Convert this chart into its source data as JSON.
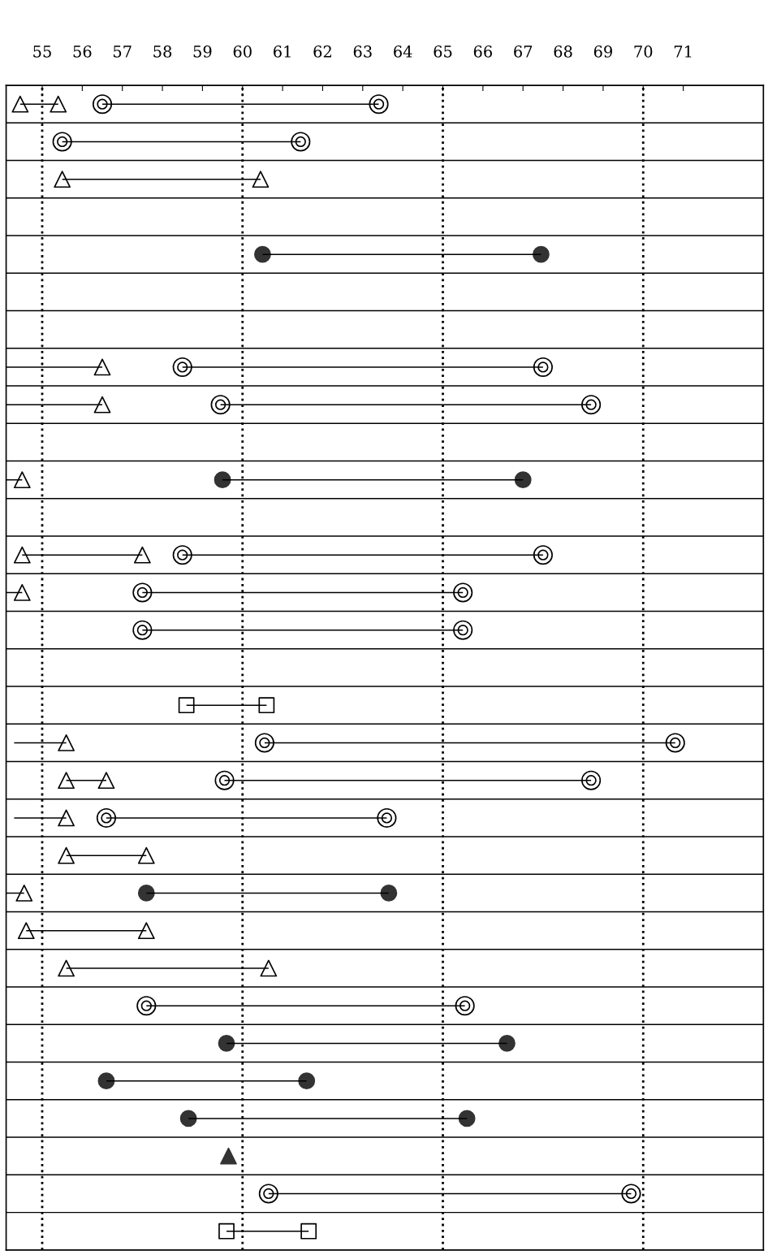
{
  "chart_data": {
    "type": "bar",
    "orientation": "horizontal",
    "categories": [
      null,
      null,
      null,
      null,
      null,
      null,
      null,
      null,
      null,
      null,
      null,
      null,
      null,
      null,
      null,
      null,
      null,
      null,
      null,
      null,
      null,
      null,
      null,
      null,
      null,
      null,
      null,
      null,
      null,
      null,
      null
    ],
    "xlim": [
      54.1,
      73.0
    ],
    "xticks": [
      55,
      56,
      57,
      58,
      59,
      60,
      61,
      62,
      63,
      64,
      65,
      66,
      67,
      68,
      69,
      70,
      71
    ],
    "grid": "y",
    "legend": false,
    "ref_lines": [
      {
        "axis": "x",
        "value": 55,
        "color": "#000000",
        "line_style": "dotted"
      },
      {
        "axis": "x",
        "value": 60,
        "color": "#000000",
        "line_style": "dotted"
      },
      {
        "axis": "x",
        "value": 65,
        "color": "#000000",
        "line_style": "dotted"
      },
      {
        "axis": "x",
        "value": 70,
        "color": "#000000",
        "line_style": "dotted"
      }
    ],
    "series": [
      {
        "color": "#000000",
        "base": [
          54.45,
          null,
          55.5,
          null,
          null,
          null,
          null,
          54.1,
          54.1,
          null,
          54.1,
          null,
          54.5,
          54.1,
          null,
          null,
          null,
          54.3,
          55.6,
          54.3,
          55.6,
          54.1,
          54.6,
          55.6,
          null,
          null,
          null,
          null,
          null,
          null,
          null
        ],
        "values": [
          0.95,
          null,
          4.95,
          null,
          null,
          null,
          null,
          2.4,
          2.4,
          null,
          0.4,
          null,
          3.0,
          0.4,
          null,
          null,
          null,
          1.3,
          1.0,
          1.3,
          2.0,
          0.45,
          3.0,
          5.05,
          null,
          null,
          null,
          null,
          null,
          null,
          null
        ]
      },
      {
        "color": "#000000",
        "base": [
          56.5,
          55.5,
          null,
          null,
          60.5,
          null,
          null,
          58.5,
          59.45,
          null,
          59.5,
          null,
          58.5,
          57.5,
          57.5,
          null,
          58.6,
          60.55,
          59.55,
          56.6,
          null,
          57.6,
          null,
          null,
          57.6,
          59.6,
          56.6,
          58.65,
          null,
          60.65,
          59.6
        ],
        "values": [
          6.9,
          5.95,
          null,
          null,
          6.95,
          null,
          null,
          9.0,
          9.25,
          null,
          7.5,
          null,
          9.0,
          8.0,
          8.0,
          null,
          2.0,
          10.25,
          9.15,
          7.0,
          null,
          6.05,
          null,
          null,
          7.95,
          7.0,
          5.0,
          6.95,
          null,
          9.05,
          2.05
        ]
      },
      {
        "type": "scatter",
        "marker": "triangle",
        "color": "#ffffff",
        "values": [
          54.45,
          null,
          55.5,
          null,
          null,
          null,
          null,
          null,
          null,
          null,
          null,
          null,
          54.5,
          null,
          null,
          null,
          null,
          null,
          55.6,
          null,
          55.6,
          null,
          54.6,
          55.6,
          null,
          null,
          null,
          null,
          null,
          null,
          null
        ]
      },
      {
        "type": "scatter",
        "marker": "triangle",
        "color": "#ffffff",
        "values": [
          55.4,
          null,
          60.45,
          null,
          null,
          null,
          null,
          56.5,
          56.5,
          null,
          54.5,
          null,
          57.5,
          54.5,
          null,
          null,
          null,
          55.6,
          56.6,
          55.6,
          57.6,
          54.55,
          57.6,
          60.65,
          null,
          null,
          null,
          null,
          null,
          null,
          null
        ]
      },
      {
        "type": "scatter",
        "marker": "circle",
        "color": "#ffffff",
        "values": [
          56.5,
          55.5,
          null,
          null,
          null,
          null,
          null,
          58.5,
          59.45,
          null,
          null,
          null,
          58.5,
          57.5,
          57.5,
          null,
          null,
          60.55,
          59.55,
          56.6,
          null,
          null,
          null,
          null,
          57.6,
          null,
          null,
          null,
          null,
          60.65,
          null
        ]
      },
      {
        "type": "scatter",
        "marker": "circle",
        "color": "#ffffff",
        "values": [
          63.4,
          61.45,
          null,
          null,
          null,
          null,
          null,
          67.5,
          68.7,
          null,
          null,
          null,
          67.5,
          65.5,
          65.5,
          null,
          null,
          70.8,
          68.7,
          63.6,
          null,
          null,
          null,
          null,
          65.55,
          null,
          null,
          null,
          null,
          69.7,
          null
        ]
      },
      {
        "type": "scatter",
        "marker": "circle",
        "color": "#333333",
        "values": [
          null,
          null,
          null,
          null,
          60.5,
          null,
          null,
          null,
          null,
          null,
          59.5,
          null,
          null,
          null,
          null,
          null,
          null,
          null,
          null,
          null,
          null,
          57.6,
          null,
          null,
          null,
          59.6,
          56.6,
          58.65,
          null,
          null,
          null
        ]
      },
      {
        "type": "scatter",
        "marker": "circle",
        "color": "#333333",
        "values": [
          null,
          null,
          null,
          null,
          67.45,
          null,
          null,
          null,
          null,
          null,
          67.0,
          null,
          null,
          null,
          null,
          null,
          null,
          null,
          null,
          null,
          null,
          63.65,
          null,
          null,
          null,
          66.6,
          61.6,
          65.6,
          null,
          null,
          null
        ]
      },
      {
        "type": "scatter",
        "marker": "square",
        "color": "#ffffff",
        "values": [
          null,
          null,
          null,
          null,
          null,
          null,
          null,
          null,
          null,
          null,
          null,
          null,
          null,
          null,
          null,
          null,
          58.6,
          null,
          null,
          null,
          null,
          null,
          null,
          null,
          null,
          null,
          null,
          null,
          null,
          null,
          59.6
        ]
      },
      {
        "type": "scatter",
        "marker": "square",
        "color": "#ffffff",
        "values": [
          null,
          null,
          null,
          null,
          null,
          null,
          null,
          null,
          null,
          null,
          null,
          null,
          null,
          null,
          null,
          null,
          60.6,
          null,
          null,
          null,
          null,
          null,
          null,
          null,
          null,
          null,
          null,
          null,
          null,
          null,
          61.65
        ]
      },
      {
        "type": "scatter",
        "marker": "triangle",
        "color": "#333333",
        "values": [
          null,
          null,
          null,
          null,
          null,
          null,
          null,
          null,
          null,
          null,
          null,
          null,
          null,
          null,
          null,
          null,
          null,
          null,
          null,
          null,
          null,
          null,
          null,
          null,
          null,
          null,
          null,
          null,
          59.65,
          null,
          null
        ]
      }
    ]
  }
}
